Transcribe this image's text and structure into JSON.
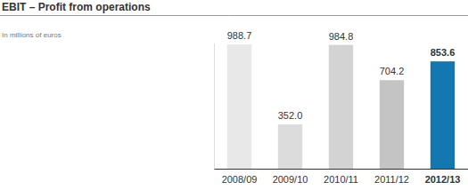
{
  "chart_data": {
    "type": "bar",
    "title": "EBIT – Profit from operations",
    "subtitle": "In millions of euros",
    "categories": [
      "2008/09",
      "2009/10",
      "2010/11",
      "2011/12",
      "2012/13"
    ],
    "values": [
      988.7,
      352.0,
      984.8,
      704.2,
      853.6
    ],
    "value_labels": [
      "988.7",
      "352.0",
      "984.8",
      "704.2",
      "853.6"
    ],
    "colors": [
      "#e8e8e8",
      "#dcdcdc",
      "#d3d3d3",
      "#c4c4c4",
      "#1478b0"
    ],
    "ylim": [
      0,
      1000
    ],
    "yticks": [],
    "grid": false,
    "data_labels": true,
    "tick_labels": "x"
  }
}
